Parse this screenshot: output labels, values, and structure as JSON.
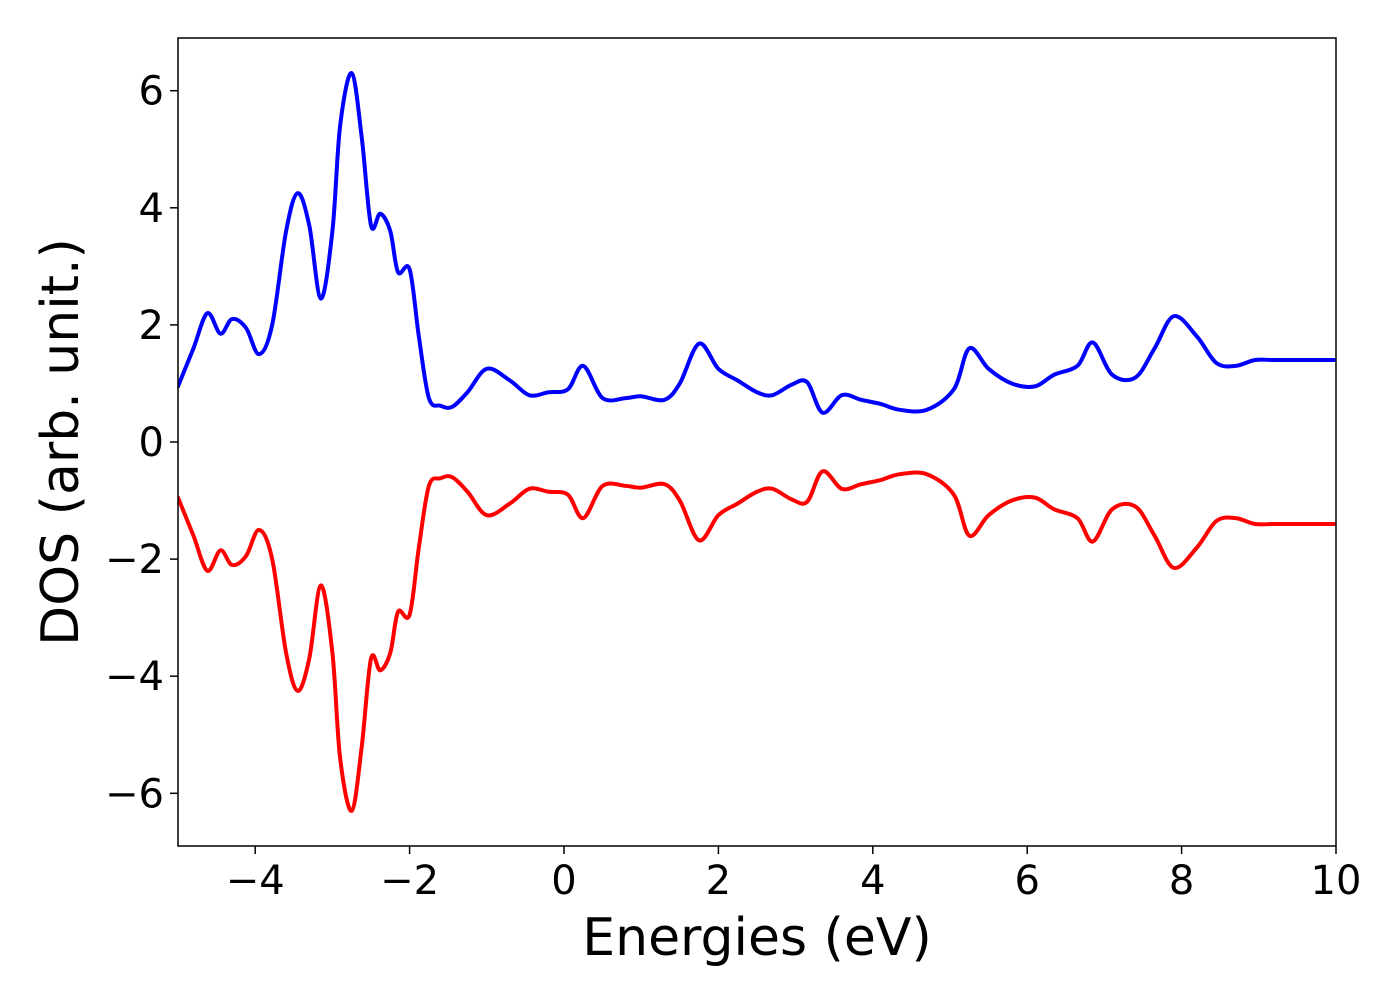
{
  "chart_data": {
    "type": "line",
    "title": "",
    "xlabel": "Energies (eV)",
    "ylabel": "DOS (arb. unit.)",
    "xlim": [
      -5,
      10
    ],
    "ylim": [
      -6.9,
      6.9
    ],
    "xticks": [
      -4,
      -2,
      0,
      2,
      4,
      6,
      8,
      10
    ],
    "xtick_labels": [
      "−4",
      "−2",
      "0",
      "2",
      "4",
      "6",
      "8",
      "10"
    ],
    "yticks": [
      -6,
      -4,
      -2,
      0,
      2,
      4,
      6
    ],
    "ytick_labels": [
      "−6",
      "−4",
      "−2",
      "0",
      "2",
      "4",
      "6"
    ],
    "grid": false,
    "legend": "none",
    "series": [
      {
        "color": "#0000ff",
        "x": [
          -5.0,
          -4.8,
          -4.62,
          -4.45,
          -4.3,
          -4.12,
          -3.95,
          -3.78,
          -3.6,
          -3.45,
          -3.3,
          -3.15,
          -3.0,
          -2.9,
          -2.75,
          -2.62,
          -2.5,
          -2.38,
          -2.25,
          -2.15,
          -2.0,
          -1.88,
          -1.75,
          -1.6,
          -1.45,
          -1.25,
          -1.0,
          -0.7,
          -0.45,
          -0.2,
          0.05,
          0.25,
          0.5,
          0.8,
          1.0,
          1.3,
          1.5,
          1.75,
          2.0,
          2.25,
          2.5,
          2.7,
          2.95,
          3.15,
          3.35,
          3.6,
          3.85,
          4.1,
          4.35,
          4.7,
          5.05,
          5.25,
          5.5,
          5.8,
          6.1,
          6.35,
          6.65,
          6.85,
          7.1,
          7.4,
          7.65,
          7.9,
          8.2,
          8.45,
          8.7,
          8.95,
          9.2,
          9.45,
          9.7,
          10.0
        ],
        "y": [
          0.95,
          1.6,
          2.2,
          1.85,
          2.1,
          1.95,
          1.5,
          2.0,
          3.6,
          4.25,
          3.7,
          2.45,
          3.6,
          5.4,
          6.3,
          5.2,
          3.7,
          3.9,
          3.6,
          2.9,
          2.95,
          1.8,
          0.75,
          0.62,
          0.6,
          0.85,
          1.25,
          1.05,
          0.8,
          0.85,
          0.9,
          1.3,
          0.75,
          0.75,
          0.78,
          0.72,
          1.0,
          1.68,
          1.25,
          1.05,
          0.85,
          0.8,
          0.98,
          1.02,
          0.5,
          0.8,
          0.72,
          0.65,
          0.55,
          0.55,
          0.9,
          1.6,
          1.25,
          1.0,
          0.95,
          1.15,
          1.3,
          1.7,
          1.15,
          1.1,
          1.6,
          2.15,
          1.8,
          1.35,
          1.3,
          1.4,
          1.4,
          1.4,
          1.4,
          1.4
        ]
      },
      {
        "color": "#ff0000",
        "x": [
          -5.0,
          -4.8,
          -4.62,
          -4.45,
          -4.3,
          -4.12,
          -3.95,
          -3.78,
          -3.6,
          -3.45,
          -3.3,
          -3.15,
          -3.0,
          -2.9,
          -2.75,
          -2.62,
          -2.5,
          -2.38,
          -2.25,
          -2.15,
          -2.0,
          -1.88,
          -1.75,
          -1.6,
          -1.45,
          -1.25,
          -1.0,
          -0.7,
          -0.45,
          -0.2,
          0.05,
          0.25,
          0.5,
          0.8,
          1.0,
          1.3,
          1.5,
          1.75,
          2.0,
          2.25,
          2.5,
          2.7,
          2.95,
          3.15,
          3.35,
          3.6,
          3.85,
          4.1,
          4.35,
          4.7,
          5.05,
          5.25,
          5.5,
          5.8,
          6.1,
          6.35,
          6.65,
          6.85,
          7.1,
          7.4,
          7.65,
          7.9,
          8.2,
          8.45,
          8.7,
          8.95,
          9.2,
          9.45,
          9.7,
          10.0
        ],
        "y": [
          -0.95,
          -1.6,
          -2.2,
          -1.85,
          -2.1,
          -1.95,
          -1.5,
          -2.0,
          -3.6,
          -4.25,
          -3.7,
          -2.45,
          -3.6,
          -5.4,
          -6.3,
          -5.2,
          -3.7,
          -3.9,
          -3.6,
          -2.9,
          -2.95,
          -1.8,
          -0.75,
          -0.62,
          -0.6,
          -0.85,
          -1.25,
          -1.05,
          -0.8,
          -0.85,
          -0.9,
          -1.3,
          -0.75,
          -0.75,
          -0.78,
          -0.72,
          -1.0,
          -1.68,
          -1.25,
          -1.05,
          -0.85,
          -0.8,
          -0.98,
          -1.02,
          -0.5,
          -0.8,
          -0.72,
          -0.65,
          -0.55,
          -0.55,
          -0.9,
          -1.6,
          -1.25,
          -1.0,
          -0.95,
          -1.15,
          -1.3,
          -1.7,
          -1.15,
          -1.1,
          -1.6,
          -2.15,
          -1.8,
          -1.35,
          -1.3,
          -1.4,
          -1.4,
          -1.4,
          -1.4,
          -1.4
        ]
      }
    ]
  }
}
